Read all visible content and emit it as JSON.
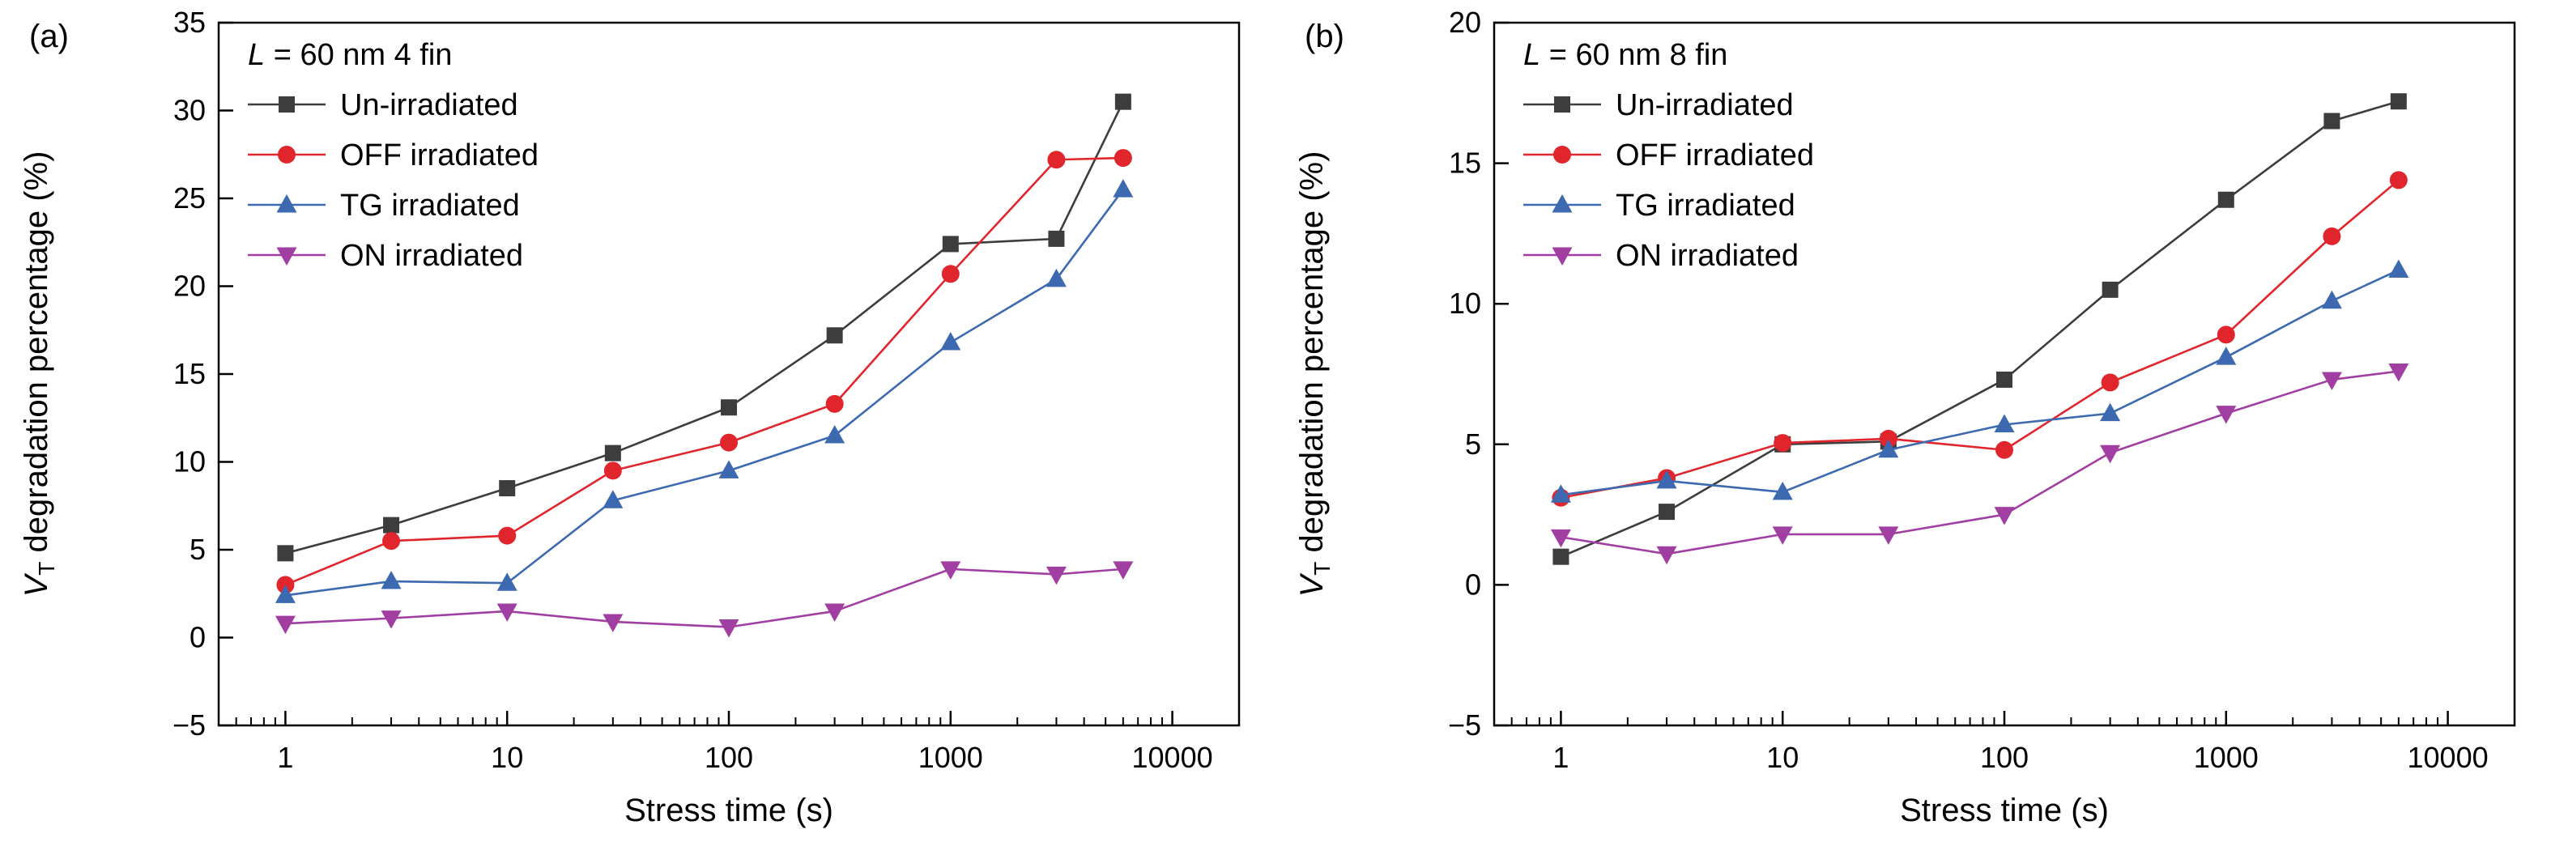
{
  "figure": {
    "background": "#ffffff"
  },
  "chart_data": [
    {
      "type": "line",
      "panel_label": "(a)",
      "legend_title_var": "L",
      "legend_title_rest": " = 60 nm 4 fin",
      "xlabel": "Stress time (s)",
      "ylabel_var": "V",
      "ylabel_sub": "T",
      "ylabel_rest": " degradation percentage (%)",
      "xscale": "log",
      "xlim": [
        0.5,
        20000
      ],
      "ylim": [
        -5,
        35
      ],
      "ytick_step": 5,
      "xticks": [
        1,
        10,
        100,
        1000,
        10000
      ],
      "xtick_labels": [
        "1",
        "10",
        "100",
        "1000",
        "10000"
      ],
      "grid": false,
      "legend_position": "top-left",
      "x": [
        1,
        3,
        10,
        30,
        100,
        300,
        1000,
        3000,
        6000
      ],
      "series": [
        {
          "name": "Un-irradiated",
          "marker": "square",
          "color": "#3d3d3d",
          "values": [
            4.8,
            6.4,
            8.5,
            10.5,
            13.1,
            17.2,
            22.4,
            22.7,
            30.5
          ]
        },
        {
          "name": "OFF irradiated",
          "marker": "circle",
          "color": "#e0262c",
          "values": [
            3.0,
            5.5,
            5.8,
            9.5,
            11.1,
            13.3,
            20.7,
            27.2,
            27.3
          ]
        },
        {
          "name": "TG irradiated",
          "marker": "triangle-up",
          "color": "#3c69b0",
          "values": [
            2.4,
            3.2,
            3.1,
            7.8,
            9.5,
            11.5,
            16.8,
            20.4,
            25.5
          ]
        },
        {
          "name": "ON irradiated",
          "marker": "triangle-down",
          "color": "#a13ea1",
          "values": [
            0.8,
            1.1,
            1.5,
            0.9,
            0.6,
            1.5,
            3.9,
            3.6,
            3.9
          ]
        }
      ]
    },
    {
      "type": "line",
      "panel_label": "(b)",
      "legend_title_var": "L",
      "legend_title_rest": " = 60 nm 8 fin",
      "xlabel": "Stress time (s)",
      "ylabel_var": "V",
      "ylabel_sub": "T",
      "ylabel_rest": " degradation percentage (%)",
      "xscale": "log",
      "xlim": [
        0.5,
        20000
      ],
      "ylim": [
        -5,
        20
      ],
      "ytick_step": 5,
      "xticks": [
        1,
        10,
        100,
        1000,
        10000
      ],
      "xtick_labels": [
        "1",
        "10",
        "100",
        "1000",
        "10000"
      ],
      "grid": false,
      "legend_position": "top-left",
      "x": [
        1,
        3,
        10,
        30,
        100,
        300,
        1000,
        3000,
        6000
      ],
      "series": [
        {
          "name": "Un-irradiated",
          "marker": "square",
          "color": "#3d3d3d",
          "values": [
            1.0,
            2.6,
            5.0,
            5.1,
            7.3,
            10.5,
            13.7,
            16.5,
            17.2
          ]
        },
        {
          "name": "OFF irradiated",
          "marker": "circle",
          "color": "#e0262c",
          "values": [
            3.1,
            3.8,
            5.05,
            5.2,
            4.8,
            7.2,
            8.9,
            12.4,
            14.4
          ]
        },
        {
          "name": "TG irradiated",
          "marker": "triangle-up",
          "color": "#3c69b0",
          "values": [
            3.2,
            3.7,
            3.3,
            4.8,
            5.7,
            6.1,
            8.1,
            10.1,
            11.2
          ]
        },
        {
          "name": "ON irradiated",
          "marker": "triangle-down",
          "color": "#a13ea1",
          "values": [
            1.7,
            1.1,
            1.8,
            1.8,
            2.5,
            4.7,
            6.1,
            7.3,
            7.6
          ]
        }
      ]
    }
  ]
}
